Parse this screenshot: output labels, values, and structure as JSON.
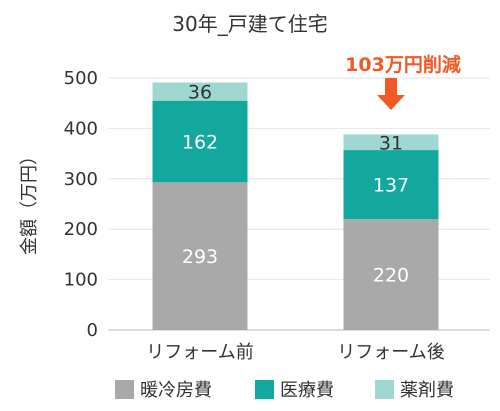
{
  "chart_data": {
    "type": "bar",
    "stacked": true,
    "title": "30年_戸建て住宅",
    "ylabel": "金額（万円）",
    "xlabel": "",
    "ylim": [
      0,
      500
    ],
    "yticks": [
      0,
      100,
      200,
      300,
      400,
      500
    ],
    "grid": true,
    "categories": [
      "リフォーム前",
      "リフォーム後"
    ],
    "series": [
      {
        "name": "暖冷房費",
        "values": [
          293,
          220
        ],
        "color": "#a9a9a9"
      },
      {
        "name": "医療費",
        "values": [
          162,
          137
        ],
        "color": "#13a89e"
      },
      {
        "name": "薬剤費",
        "values": [
          36,
          31
        ],
        "color": "#9fd8d2"
      }
    ],
    "annotation": {
      "text": "103万円削減",
      "color": "#ef5a26"
    },
    "legend_position": "bottom"
  }
}
